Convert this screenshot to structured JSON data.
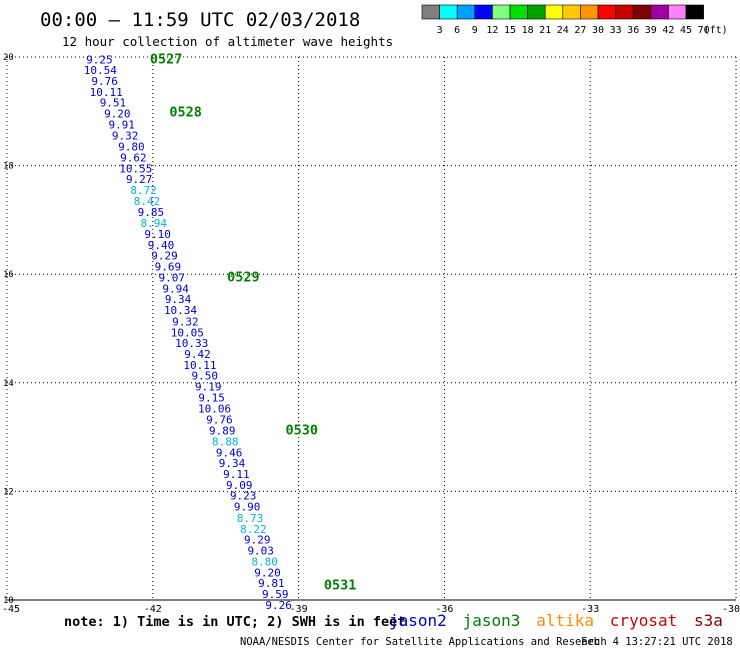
{
  "header": {
    "title": "00:00 — 11:59 UTC 02/03/2018",
    "subtitle": "12 hour collection of altimeter wave heights"
  },
  "colorbar": {
    "labels": [
      "3",
      "6",
      "9",
      "12",
      "15",
      "18",
      "21",
      "24",
      "27",
      "30",
      "33",
      "36",
      "39",
      "42",
      "45",
      "70"
    ],
    "unit": "(ft)",
    "colors": [
      "#808080",
      "#00ffff",
      "#00a0ff",
      "#0000ff",
      "#80ff80",
      "#00e000",
      "#00a000",
      "#ffff00",
      "#ffc800",
      "#ff9600",
      "#ff0000",
      "#c80000",
      "#800000",
      "#a000a0",
      "#ff80ff",
      "#000000"
    ]
  },
  "footer": {
    "note": "note: 1) Time is in UTC; 2) SWH is in feet",
    "credit": "NOAA/NESDIS Center for Satellite Applications and Research",
    "timestamp": "Feb  4 13:27:21 UTC 2018",
    "satellites": [
      {
        "name": "jason2",
        "color": "#0000cd"
      },
      {
        "name": "jason3",
        "color": "#008000"
      },
      {
        "name": "altika",
        "color": "#ff8c00"
      },
      {
        "name": "cryosat",
        "color": "#cc0000"
      },
      {
        "name": "s3a",
        "color": "#8b0000"
      }
    ]
  },
  "chart_data": {
    "type": "scatter",
    "title": "00:00 — 11:59 UTC 02/03/2018",
    "subtitle": "12 hour collection of altimeter wave heights",
    "xlabel": "",
    "ylabel": "",
    "xlim": [
      -45,
      -30
    ],
    "ylim": [
      10,
      20
    ],
    "x_ticks": [
      "-45",
      "-42",
      "-39",
      "-36",
      "-33",
      "-30"
    ],
    "y_ticks": [
      "10",
      "12",
      "14",
      "16",
      "18",
      "20"
    ],
    "grid": true,
    "colors": {
      "jason2": "#0000cd",
      "light": "#00b4e6",
      "time": "#008000"
    },
    "series": [
      {
        "name": "jason2",
        "points": [
          {
            "lon": -43.1,
            "lat": 19.95,
            "swh": "9.25",
            "tone": "jason2"
          },
          {
            "lon": -43.08,
            "lat": 19.76,
            "swh": "10.54",
            "tone": "jason2"
          },
          {
            "lon": -42.99,
            "lat": 19.56,
            "swh": "9.76",
            "tone": "jason2"
          },
          {
            "lon": -42.96,
            "lat": 19.36,
            "swh": "10.11",
            "tone": "jason2"
          },
          {
            "lon": -42.82,
            "lat": 19.16,
            "swh": "9.51",
            "tone": "jason2"
          },
          {
            "lon": -42.73,
            "lat": 18.96,
            "swh": "9.20",
            "tone": "jason2"
          },
          {
            "lon": -42.64,
            "lat": 18.76,
            "swh": "9.91",
            "tone": "jason2"
          },
          {
            "lon": -42.57,
            "lat": 18.55,
            "swh": "9.32",
            "tone": "jason2"
          },
          {
            "lon": -42.44,
            "lat": 18.35,
            "swh": "9.80",
            "tone": "jason2"
          },
          {
            "lon": -42.4,
            "lat": 18.15,
            "swh": "9.62",
            "tone": "jason2"
          },
          {
            "lon": -42.35,
            "lat": 17.95,
            "swh": "10.55",
            "tone": "jason2"
          },
          {
            "lon": -42.28,
            "lat": 17.75,
            "swh": "9.27",
            "tone": "jason2"
          },
          {
            "lon": -42.19,
            "lat": 17.55,
            "swh": "8.72",
            "tone": "light"
          },
          {
            "lon": -42.12,
            "lat": 17.35,
            "swh": "8.42",
            "tone": "light"
          },
          {
            "lon": -42.04,
            "lat": 17.15,
            "swh": "9.85",
            "tone": "jason2"
          },
          {
            "lon": -41.98,
            "lat": 16.94,
            "swh": "8.94",
            "tone": "light"
          },
          {
            "lon": -41.9,
            "lat": 16.74,
            "swh": "9.10",
            "tone": "jason2"
          },
          {
            "lon": -41.83,
            "lat": 16.54,
            "swh": "9.40",
            "tone": "jason2"
          },
          {
            "lon": -41.76,
            "lat": 16.34,
            "swh": "9.29",
            "tone": "jason2"
          },
          {
            "lon": -41.69,
            "lat": 16.14,
            "swh": "9.69",
            "tone": "jason2"
          },
          {
            "lon": -41.61,
            "lat": 15.94,
            "swh": "9.07",
            "tone": "jason2"
          },
          {
            "lon": -41.53,
            "lat": 15.74,
            "swh": "9.94",
            "tone": "jason2"
          },
          {
            "lon": -41.48,
            "lat": 15.54,
            "swh": "9.34",
            "tone": "jason2"
          },
          {
            "lon": -41.43,
            "lat": 15.34,
            "swh": "10.34",
            "tone": "jason2"
          },
          {
            "lon": -41.33,
            "lat": 15.13,
            "swh": "9.32",
            "tone": "jason2"
          },
          {
            "lon": -41.29,
            "lat": 14.93,
            "swh": "10.05",
            "tone": "jason2"
          },
          {
            "lon": -41.2,
            "lat": 14.73,
            "swh": "10.33",
            "tone": "jason2"
          },
          {
            "lon": -41.08,
            "lat": 14.53,
            "swh": "9.42",
            "tone": "jason2"
          },
          {
            "lon": -41.03,
            "lat": 14.33,
            "swh": "10.11",
            "tone": "jason2"
          },
          {
            "lon": -40.93,
            "lat": 14.13,
            "swh": "9.50",
            "tone": "jason2"
          },
          {
            "lon": -40.86,
            "lat": 13.93,
            "swh": "9.19",
            "tone": "jason2"
          },
          {
            "lon": -40.79,
            "lat": 13.73,
            "swh": "9.15",
            "tone": "jason2"
          },
          {
            "lon": -40.73,
            "lat": 13.53,
            "swh": "10.06",
            "tone": "jason2"
          },
          {
            "lon": -40.63,
            "lat": 13.32,
            "swh": "9.76",
            "tone": "jason2"
          },
          {
            "lon": -40.57,
            "lat": 13.12,
            "swh": "9.89",
            "tone": "jason2"
          },
          {
            "lon": -40.51,
            "lat": 12.92,
            "swh": "8.88",
            "tone": "light"
          },
          {
            "lon": -40.43,
            "lat": 12.72,
            "swh": "9.46",
            "tone": "jason2"
          },
          {
            "lon": -40.37,
            "lat": 12.52,
            "swh": "9.34",
            "tone": "jason2"
          },
          {
            "lon": -40.28,
            "lat": 12.32,
            "swh": "9.11",
            "tone": "jason2"
          },
          {
            "lon": -40.22,
            "lat": 12.12,
            "swh": "9.09",
            "tone": "jason2"
          },
          {
            "lon": -40.14,
            "lat": 11.92,
            "swh": "9.23",
            "tone": "jason2"
          },
          {
            "lon": -40.06,
            "lat": 11.72,
            "swh": "9.90",
            "tone": "jason2"
          },
          {
            "lon": -40.0,
            "lat": 11.51,
            "swh": "8.73",
            "tone": "light"
          },
          {
            "lon": -39.93,
            "lat": 11.31,
            "swh": "8.22",
            "tone": "light"
          },
          {
            "lon": -39.85,
            "lat": 11.11,
            "swh": "9.29",
            "tone": "jason2"
          },
          {
            "lon": -39.78,
            "lat": 10.91,
            "swh": "9.03",
            "tone": "jason2"
          },
          {
            "lon": -39.7,
            "lat": 10.71,
            "swh": "8.80",
            "tone": "light"
          },
          {
            "lon": -39.64,
            "lat": 10.51,
            "swh": "9.20",
            "tone": "jason2"
          },
          {
            "lon": -39.56,
            "lat": 10.31,
            "swh": "9.81",
            "tone": "jason2"
          },
          {
            "lon": -39.48,
            "lat": 10.11,
            "swh": "9.59",
            "tone": "jason2"
          },
          {
            "lon": -39.41,
            "lat": 9.91,
            "swh": "9.26",
            "tone": "jason2"
          }
        ]
      }
    ],
    "time_labels": [
      {
        "lon": -42.06,
        "lat": 19.97,
        "text": "0527"
      },
      {
        "lon": -41.66,
        "lat": 19.0,
        "text": "0528"
      },
      {
        "lon": -40.47,
        "lat": 15.96,
        "text": "0529"
      },
      {
        "lon": -39.27,
        "lat": 13.14,
        "text": "0530"
      },
      {
        "lon": -38.48,
        "lat": 10.29,
        "text": "0531"
      }
    ]
  }
}
